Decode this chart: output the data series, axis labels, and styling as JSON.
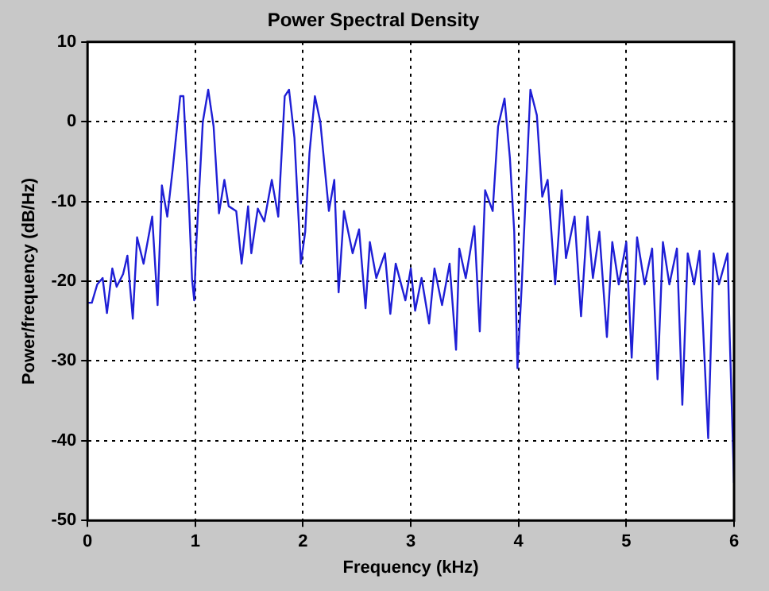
{
  "chart_data": {
    "type": "line",
    "title": "Power Spectral Density",
    "xlabel": "Frequency (kHz)",
    "ylabel": "Power/frequency (dB/Hz)",
    "x": [
      0,
      0.04,
      0.09,
      0.14,
      0.18,
      0.23,
      0.27,
      0.33,
      0.37,
      0.42,
      0.46,
      0.52,
      0.6,
      0.65,
      0.69,
      0.74,
      0.79,
      0.86,
      0.89,
      0.94,
      0.97,
      0.99,
      1.01,
      1.07,
      1.12,
      1.17,
      1.22,
      1.27,
      1.31,
      1.38,
      1.43,
      1.49,
      1.52,
      1.58,
      1.64,
      1.71,
      1.77,
      1.83,
      1.87,
      1.92,
      1.98,
      2.02,
      2.06,
      2.11,
      2.16,
      2.24,
      2.29,
      2.33,
      2.38,
      2.46,
      2.52,
      2.58,
      2.62,
      2.68,
      2.76,
      2.81,
      2.86,
      2.95,
      3.0,
      3.04,
      3.1,
      3.17,
      3.22,
      3.29,
      3.36,
      3.42,
      3.45,
      3.51,
      3.59,
      3.64,
      3.69,
      3.76,
      3.81,
      3.87,
      3.92,
      3.96,
      3.99,
      4.03,
      4.11,
      4.17,
      4.22,
      4.27,
      4.34,
      4.4,
      4.44,
      4.52,
      4.58,
      4.64,
      4.69,
      4.75,
      4.82,
      4.87,
      4.93,
      5.0,
      5.05,
      5.1,
      5.17,
      5.24,
      5.29,
      5.34,
      5.4,
      5.47,
      5.52,
      5.57,
      5.63,
      5.68,
      5.76,
      5.81,
      5.86,
      5.94,
      5.96,
      6.0
    ],
    "series": [
      {
        "color": "#1f1fd6",
        "values": [
          -22.7,
          -22.7,
          -20.4,
          -19.6,
          -24,
          -18.4,
          -20.7,
          -19.1,
          -16.8,
          -24.7,
          -14.5,
          -17.8,
          -11.9,
          -23,
          -8,
          -11.9,
          -6,
          3.2,
          3.2,
          -10,
          -19.8,
          -22.4,
          -15.1,
          0,
          4,
          -0.6,
          -11.5,
          -7.3,
          -10.6,
          -11.2,
          -17.8,
          -10.6,
          -16.5,
          -10.9,
          -12.5,
          -7.3,
          -11.9,
          3.2,
          4,
          -2,
          -17.8,
          -13.8,
          -3.9,
          3.2,
          0,
          -11.2,
          -7.3,
          -21.4,
          -11.2,
          -16.5,
          -13.5,
          -23.4,
          -15.1,
          -19.6,
          -16.5,
          -24.1,
          -17.8,
          -22.4,
          -18.4,
          -23.7,
          -19.6,
          -25.3,
          -18.4,
          -23,
          -17.8,
          -28.6,
          -15.9,
          -19.6,
          -13.1,
          -26.3,
          -8.6,
          -11.2,
          -0.6,
          2.9,
          -4.6,
          -13.8,
          -30.9,
          -20.4,
          4,
          0.8,
          -9.4,
          -7.3,
          -20.4,
          -8.6,
          -17.1,
          -11.9,
          -24.4,
          -11.9,
          -19.6,
          -13.8,
          -27,
          -15.1,
          -20.4,
          -15.1,
          -29.6,
          -14.5,
          -20.4,
          -15.9,
          -32.3,
          -15.1,
          -20.4,
          -15.9,
          -35.5,
          -16.5,
          -20.4,
          -16.2,
          -39.7,
          -16.5,
          -20.4,
          -16.5,
          -27,
          -45.3
        ]
      }
    ],
    "xlim": [
      0,
      6
    ],
    "ylim": [
      -50,
      10
    ],
    "xticks": [
      0,
      1,
      2,
      3,
      4,
      5,
      6
    ],
    "yticks": [
      -50,
      -40,
      -30,
      -20,
      -10,
      0,
      10
    ],
    "grid": true,
    "marker": "none",
    "line_style": "solid"
  }
}
